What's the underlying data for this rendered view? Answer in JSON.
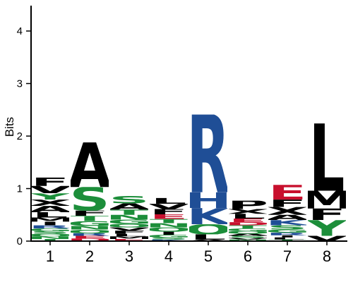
{
  "chart_data": {
    "type": "sequence-logo",
    "ylabel": "Bits",
    "ylim": [
      0,
      4.5
    ],
    "yticks": [
      "0",
      "1",
      "2",
      "3",
      "4"
    ],
    "positions": [
      {
        "label": "1",
        "letters": [
          {
            "l": "T",
            "h": 0.04
          },
          {
            "l": "N",
            "h": 0.05
          },
          {
            "l": "Q",
            "h": 0.05
          },
          {
            "l": "S",
            "h": 0.05
          },
          {
            "l": "G",
            "h": 0.05
          },
          {
            "l": "R",
            "h": 0.06
          },
          {
            "l": "I",
            "h": 0.07
          },
          {
            "l": "M",
            "h": 0.08
          },
          {
            "l": "L",
            "h": 0.1
          },
          {
            "l": "A",
            "h": 0.12
          },
          {
            "l": "X",
            "h": 0.12
          },
          {
            "l": "Y",
            "h": 0.12
          },
          {
            "l": "V",
            "h": 0.14
          },
          {
            "l": "F",
            "h": 0.16
          }
        ]
      },
      {
        "label": "2",
        "letters": [
          {
            "l": "D",
            "h": 0.05
          },
          {
            "l": "E",
            "h": 0.05
          },
          {
            "l": "R",
            "h": 0.05
          },
          {
            "l": "Q",
            "h": 0.07
          },
          {
            "l": "N",
            "h": 0.07
          },
          {
            "l": "G",
            "h": 0.09
          },
          {
            "l": "T",
            "h": 0.1
          },
          {
            "l": "F",
            "h": 0.1
          },
          {
            "l": "S",
            "h": 0.45
          },
          {
            "l": "A",
            "h": 0.85
          }
        ]
      },
      {
        "label": "3",
        "letters": [
          {
            "l": "E",
            "h": 0.04
          },
          {
            "l": "M",
            "h": 0.05
          },
          {
            "l": "L",
            "h": 0.05
          },
          {
            "l": "F",
            "h": 0.06
          },
          {
            "l": "V",
            "h": 0.06
          },
          {
            "l": "Q",
            "h": 0.07
          },
          {
            "l": "G",
            "h": 0.08
          },
          {
            "l": "N",
            "h": 0.09
          },
          {
            "l": "T",
            "h": 0.1
          },
          {
            "l": "A",
            "h": 0.12
          },
          {
            "l": "S",
            "h": 0.14
          }
        ]
      },
      {
        "label": "4",
        "letters": [
          {
            "l": "K",
            "h": 0.03
          },
          {
            "l": "S",
            "h": 0.04
          },
          {
            "l": "G",
            "h": 0.05
          },
          {
            "l": "I",
            "h": 0.06
          },
          {
            "l": "Q",
            "h": 0.08
          },
          {
            "l": "N",
            "h": 0.08
          },
          {
            "l": "T",
            "h": 0.08
          },
          {
            "l": "E",
            "h": 0.09
          },
          {
            "l": "F",
            "h": 0.1
          },
          {
            "l": "V",
            "h": 0.1
          },
          {
            "l": "L",
            "h": 0.11
          }
        ]
      },
      {
        "label": "5",
        "letters": [
          {
            "l": "A",
            "h": 0.03
          },
          {
            "l": "L",
            "h": 0.1
          },
          {
            "l": "Q",
            "h": 0.19
          },
          {
            "l": "K",
            "h": 0.31
          },
          {
            "l": "H",
            "h": 0.3
          },
          {
            "l": "R",
            "h": 1.48
          }
        ]
      },
      {
        "label": "6",
        "letters": [
          {
            "l": "N",
            "h": 0.03
          },
          {
            "l": "V",
            "h": 0.03
          },
          {
            "l": "S",
            "h": 0.04
          },
          {
            "l": "A",
            "h": 0.04
          },
          {
            "l": "Q",
            "h": 0.05
          },
          {
            "l": "G",
            "h": 0.05
          },
          {
            "l": "T",
            "h": 0.06
          },
          {
            "l": "D",
            "h": 0.06
          },
          {
            "l": "E",
            "h": 0.07
          },
          {
            "l": "L",
            "h": 0.09
          },
          {
            "l": "X",
            "h": 0.09
          },
          {
            "l": "P",
            "h": 0.16
          }
        ]
      },
      {
        "label": "7",
        "letters": [
          {
            "l": "T",
            "h": 0.03
          },
          {
            "l": "L",
            "h": 0.04
          },
          {
            "l": "I",
            "h": 0.04
          },
          {
            "l": "R",
            "h": 0.05
          },
          {
            "l": "G",
            "h": 0.06
          },
          {
            "l": "S",
            "h": 0.08
          },
          {
            "l": "K",
            "h": 0.1
          },
          {
            "l": "A",
            "h": 0.1
          },
          {
            "l": "X",
            "h": 0.15
          },
          {
            "l": "F",
            "h": 0.14
          },
          {
            "l": "E",
            "h": 0.28
          }
        ]
      },
      {
        "label": "8",
        "letters": [
          {
            "l": "V",
            "h": 0.1
          },
          {
            "l": "Y",
            "h": 0.3
          },
          {
            "l": "F",
            "h": 0.22
          },
          {
            "l": "M",
            "h": 0.34
          },
          {
            "l": "L",
            "h": 1.28
          }
        ]
      }
    ],
    "colors": {
      "A": "#000000",
      "V": "#000000",
      "L": "#000000",
      "I": "#000000",
      "P": "#000000",
      "F": "#000000",
      "M": "#000000",
      "W": "#000000",
      "X": "#000000",
      "S": "#1c8e3a",
      "T": "#1c8e3a",
      "N": "#1c8e3a",
      "Q": "#1c8e3a",
      "G": "#1c8e3a",
      "C": "#1c8e3a",
      "Y": "#1c8e3a",
      "R": "#1f4e96",
      "K": "#1f4e96",
      "H": "#1f4e96",
      "D": "#c8102e",
      "E": "#c8102e"
    }
  }
}
